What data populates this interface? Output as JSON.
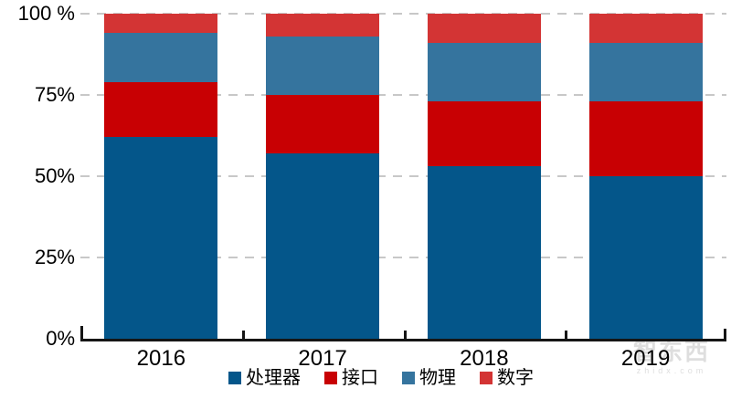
{
  "chart_data": {
    "type": "bar",
    "subtype": "stacked-100-percent",
    "title": "",
    "xlabel": "",
    "ylabel": "",
    "categories": [
      "2016",
      "2017",
      "2018",
      "2019"
    ],
    "series": [
      {
        "name": "处理器",
        "color": "#04568A",
        "values": [
          62,
          57,
          53,
          50
        ]
      },
      {
        "name": "接口",
        "color": "#C80003",
        "values": [
          17,
          18,
          20,
          23
        ]
      },
      {
        "name": "物理",
        "color": "#35749E",
        "values": [
          15,
          18,
          18,
          18
        ]
      },
      {
        "name": "数字",
        "color": "#D33434",
        "values": [
          6,
          7,
          9,
          9
        ]
      }
    ],
    "stack_order": "bottom-to-top",
    "y_axis": {
      "range": [
        0,
        100
      ],
      "ticks": [
        {
          "label": "0%",
          "value": 0
        },
        {
          "label": "25%",
          "value": 25
        },
        {
          "label": "50%",
          "value": 50
        },
        {
          "label": "75%",
          "value": 75
        },
        {
          "label": "100 %",
          "value": 100
        }
      ],
      "grid": true,
      "grid_style": "dashed"
    },
    "legend": {
      "position": "bottom",
      "items": [
        "处理器",
        "接口",
        "物理",
        "数字"
      ]
    },
    "colors": {
      "axis": "#151515",
      "grid": "#C8C8C8",
      "text": "#000000",
      "background": "#FFFFFF"
    }
  },
  "watermark": {
    "logo_text": "智东西",
    "url_text": "zhidx.com"
  }
}
